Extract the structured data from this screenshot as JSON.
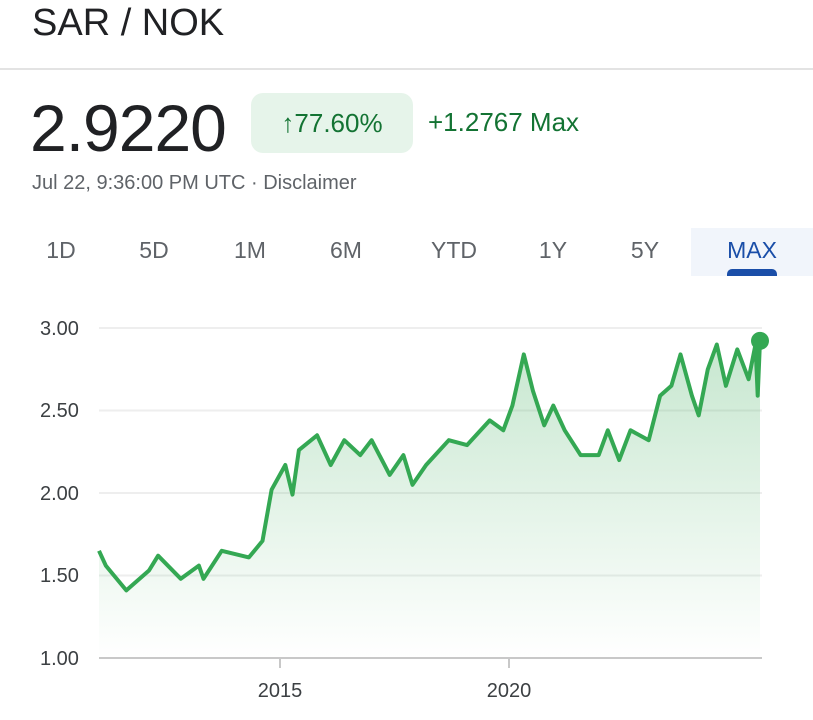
{
  "header": {
    "title": "SAR / NOK"
  },
  "quote": {
    "price": "2.9220",
    "change_pct": "77.60%",
    "change_arrow": "↑",
    "change_abs": "+1.2767 Max",
    "timestamp": "Jul 22, 9:36:00 PM UTC",
    "separator": " · ",
    "disclaimer": "Disclaimer"
  },
  "tabs": [
    {
      "label": "1D"
    },
    {
      "label": "5D"
    },
    {
      "label": "1M"
    },
    {
      "label": "6M"
    },
    {
      "label": "YTD"
    },
    {
      "label": "1Y"
    },
    {
      "label": "5Y"
    },
    {
      "label": "MAX",
      "active": true
    }
  ],
  "colors": {
    "line": "#34a853",
    "positive": "#137333",
    "active_tab": "#1a4ea8"
  },
  "chart_data": {
    "type": "area",
    "title": "",
    "xlabel": "",
    "ylabel": "",
    "ylim": [
      1.0,
      3.0
    ],
    "xlim": [
      2011.0,
      2025.55
    ],
    "yticks": [
      "1.00",
      "1.50",
      "2.00",
      "2.50",
      "3.00"
    ],
    "xticks": [
      "2015",
      "2020"
    ],
    "grid": true,
    "series": [
      {
        "x": [
          2011.0,
          2011.15,
          2011.6,
          2012.1,
          2012.3,
          2012.8,
          2013.2,
          2013.3,
          2013.7,
          2014.3,
          2014.6,
          2014.8,
          2015.1,
          2015.26,
          2015.4,
          2015.8,
          2016.1,
          2016.4,
          2016.75,
          2017.0,
          2017.4,
          2017.7,
          2017.9,
          2018.2,
          2018.7,
          2019.1,
          2019.6,
          2019.9,
          2020.1,
          2020.35,
          2020.55,
          2020.8,
          2021.0,
          2021.25,
          2021.6,
          2022.0,
          2022.2,
          2022.45,
          2022.7,
          2023.1,
          2023.35,
          2023.6,
          2023.8,
          2024.05,
          2024.2,
          2024.4,
          2024.6,
          2024.8,
          2025.05,
          2025.3,
          2025.45,
          2025.5,
          2025.55
        ],
        "y": [
          1.65,
          1.56,
          1.41,
          1.53,
          1.62,
          1.48,
          1.56,
          1.48,
          1.65,
          1.61,
          1.71,
          2.02,
          2.17,
          1.99,
          2.26,
          2.35,
          2.17,
          2.32,
          2.23,
          2.32,
          2.11,
          2.23,
          2.05,
          2.17,
          2.32,
          2.29,
          2.44,
          2.38,
          2.53,
          2.84,
          2.62,
          2.41,
          2.53,
          2.38,
          2.23,
          2.23,
          2.38,
          2.2,
          2.38,
          2.32,
          2.59,
          2.65,
          2.84,
          2.59,
          2.47,
          2.75,
          2.9,
          2.65,
          2.87,
          2.69,
          2.9,
          2.59,
          2.922
        ]
      }
    ]
  }
}
